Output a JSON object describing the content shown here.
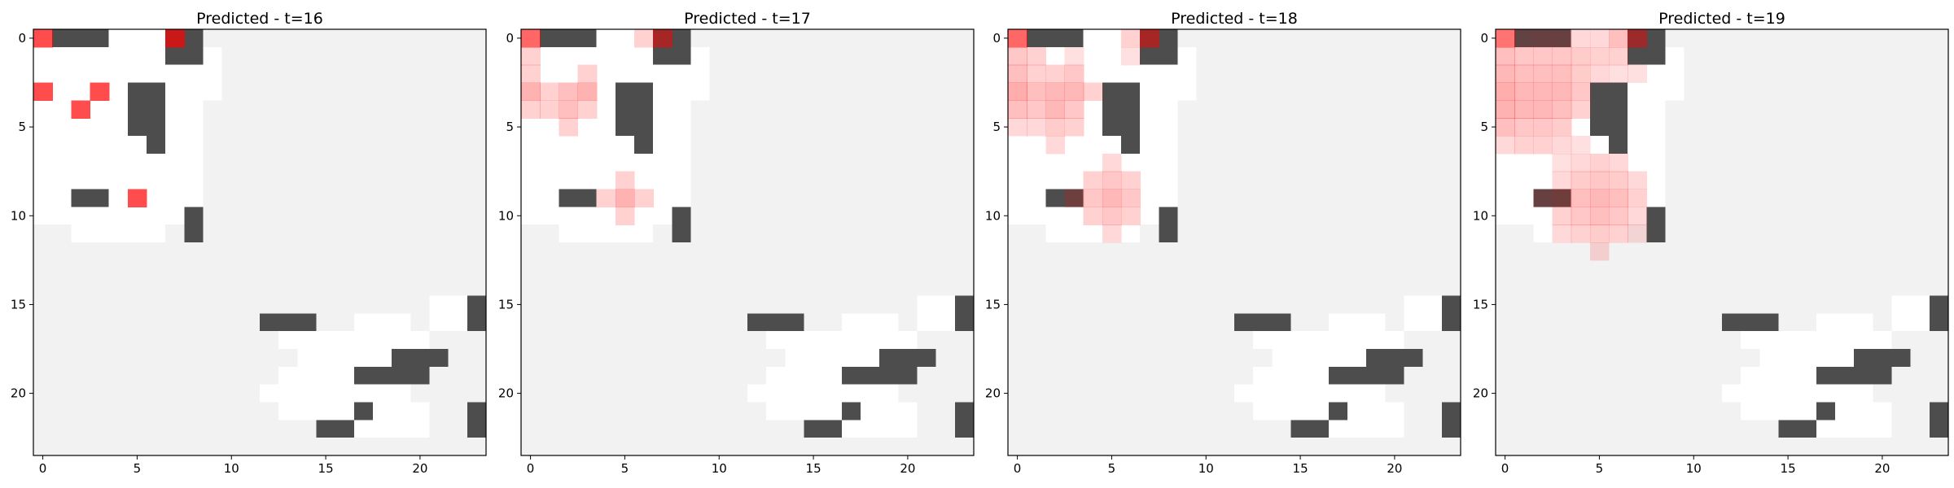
{
  "colors": {
    "unknown": "#f2f2f2",
    "free": "#ffffff",
    "obstacle": "#4d4d4d",
    "prediction": "#ff0000",
    "frame": "#000000"
  },
  "chart_data": {
    "type": "heatmap",
    "grid_size": [
      24,
      24
    ],
    "cell_legend": {
      "0": "unknown",
      "1": "free",
      "2": "obstacle"
    },
    "xticks": [
      0,
      5,
      10,
      15,
      20
    ],
    "yticks": [
      0,
      5,
      10,
      15,
      20
    ],
    "xlim": [
      -0.5,
      23.5
    ],
    "ylim": [
      23.5,
      -0.5
    ],
    "base_grid": [
      "122211122000000000000000",
      "111111122100000000000000",
      "111111111100000000000000",
      "111112211100000000000000",
      "111112211000000000000000",
      "111112211000000000000000",
      "111111211000000000000000",
      "111111111000000000000000",
      "111111111000000000000000",
      "112211111000000000000000",
      "111111112000000000000000",
      "001111102000000000000000",
      "000000000000000000000000",
      "000000000000000000000000",
      "000000000000000000000000",
      "000000000000000000000112",
      "000000000000222001110112",
      "000000000000011111111000",
      "000000000000001111122200",
      "000000000000011112222000",
      "000000000000111111110000",
      "000000000000011112111002",
      "000000000000000221111002",
      "000000000000000000000000"
    ],
    "panels": [
      {
        "title": "Predicted - t=16",
        "predictions": [
          [
            0,
            0,
            0.7
          ],
          [
            0,
            7,
            0.7
          ],
          [
            3,
            0,
            0.7
          ],
          [
            3,
            3,
            0.7
          ],
          [
            4,
            2,
            0.7
          ],
          [
            9,
            5,
            0.7
          ]
        ]
      },
      {
        "title": "Predicted - t=17",
        "predictions": [
          [
            0,
            0,
            0.6
          ],
          [
            0,
            6,
            0.18
          ],
          [
            0,
            7,
            0.5
          ],
          [
            1,
            0,
            0.18
          ],
          [
            2,
            0,
            0.18
          ],
          [
            2,
            3,
            0.18
          ],
          [
            3,
            0,
            0.3
          ],
          [
            3,
            1,
            0.18
          ],
          [
            3,
            2,
            0.25
          ],
          [
            3,
            3,
            0.3
          ],
          [
            4,
            0,
            0.18
          ],
          [
            4,
            1,
            0.18
          ],
          [
            4,
            2,
            0.25
          ],
          [
            4,
            3,
            0.18
          ],
          [
            5,
            2,
            0.18
          ],
          [
            8,
            5,
            0.18
          ],
          [
            9,
            4,
            0.18
          ],
          [
            9,
            5,
            0.3
          ],
          [
            9,
            6,
            0.18
          ],
          [
            10,
            5,
            0.18
          ]
        ]
      },
      {
        "title": "Predicted - t=18",
        "predictions": [
          [
            0,
            0,
            0.6
          ],
          [
            0,
            6,
            0.18
          ],
          [
            0,
            7,
            0.5
          ],
          [
            1,
            0,
            0.22
          ],
          [
            1,
            1,
            0.18
          ],
          [
            1,
            3,
            0.12
          ],
          [
            1,
            6,
            0.12
          ],
          [
            2,
            0,
            0.25
          ],
          [
            2,
            1,
            0.18
          ],
          [
            2,
            2,
            0.18
          ],
          [
            2,
            3,
            0.22
          ],
          [
            3,
            0,
            0.32
          ],
          [
            3,
            1,
            0.25
          ],
          [
            3,
            2,
            0.28
          ],
          [
            3,
            3,
            0.28
          ],
          [
            3,
            4,
            0.18
          ],
          [
            4,
            0,
            0.25
          ],
          [
            4,
            1,
            0.22
          ],
          [
            4,
            2,
            0.28
          ],
          [
            4,
            3,
            0.22
          ],
          [
            5,
            0,
            0.15
          ],
          [
            5,
            1,
            0.15
          ],
          [
            5,
            2,
            0.2
          ],
          [
            5,
            3,
            0.18
          ],
          [
            6,
            2,
            0.15
          ],
          [
            7,
            5,
            0.15
          ],
          [
            8,
            4,
            0.18
          ],
          [
            8,
            5,
            0.22
          ],
          [
            8,
            6,
            0.18
          ],
          [
            9,
            3,
            0.18
          ],
          [
            9,
            4,
            0.22
          ],
          [
            9,
            5,
            0.28
          ],
          [
            9,
            6,
            0.22
          ],
          [
            10,
            4,
            0.18
          ],
          [
            10,
            5,
            0.22
          ],
          [
            10,
            6,
            0.18
          ],
          [
            11,
            5,
            0.15
          ]
        ]
      },
      {
        "title": "Predicted - t=19",
        "predictions": [
          [
            0,
            0,
            0.55
          ],
          [
            0,
            1,
            0.12
          ],
          [
            0,
            2,
            0.15
          ],
          [
            0,
            3,
            0.15
          ],
          [
            0,
            4,
            0.15
          ],
          [
            0,
            5,
            0.15
          ],
          [
            0,
            6,
            0.25
          ],
          [
            0,
            7,
            0.45
          ],
          [
            1,
            0,
            0.25
          ],
          [
            1,
            1,
            0.22
          ],
          [
            1,
            2,
            0.22
          ],
          [
            1,
            3,
            0.22
          ],
          [
            1,
            4,
            0.2
          ],
          [
            1,
            5,
            0.18
          ],
          [
            1,
            6,
            0.18
          ],
          [
            2,
            0,
            0.28
          ],
          [
            2,
            1,
            0.25
          ],
          [
            2,
            2,
            0.25
          ],
          [
            2,
            3,
            0.25
          ],
          [
            2,
            4,
            0.2
          ],
          [
            2,
            5,
            0.15
          ],
          [
            2,
            6,
            0.12
          ],
          [
            2,
            7,
            0.12
          ],
          [
            3,
            0,
            0.32
          ],
          [
            3,
            1,
            0.28
          ],
          [
            3,
            2,
            0.28
          ],
          [
            3,
            3,
            0.28
          ],
          [
            3,
            4,
            0.22
          ],
          [
            4,
            0,
            0.3
          ],
          [
            4,
            1,
            0.28
          ],
          [
            4,
            2,
            0.28
          ],
          [
            4,
            3,
            0.25
          ],
          [
            4,
            4,
            0.18
          ],
          [
            5,
            0,
            0.25
          ],
          [
            5,
            1,
            0.22
          ],
          [
            5,
            2,
            0.22
          ],
          [
            5,
            3,
            0.2
          ],
          [
            6,
            0,
            0.15
          ],
          [
            6,
            1,
            0.18
          ],
          [
            6,
            2,
            0.18
          ],
          [
            6,
            3,
            0.15
          ],
          [
            6,
            4,
            0.12
          ],
          [
            7,
            3,
            0.12
          ],
          [
            7,
            4,
            0.15
          ],
          [
            7,
            5,
            0.18
          ],
          [
            7,
            6,
            0.15
          ],
          [
            8,
            3,
            0.15
          ],
          [
            8,
            4,
            0.2
          ],
          [
            8,
            5,
            0.22
          ],
          [
            8,
            6,
            0.2
          ],
          [
            8,
            7,
            0.15
          ],
          [
            9,
            2,
            0.15
          ],
          [
            9,
            3,
            0.2
          ],
          [
            9,
            4,
            0.25
          ],
          [
            9,
            5,
            0.28
          ],
          [
            9,
            6,
            0.25
          ],
          [
            9,
            7,
            0.18
          ],
          [
            10,
            3,
            0.18
          ],
          [
            10,
            4,
            0.22
          ],
          [
            10,
            5,
            0.25
          ],
          [
            10,
            6,
            0.22
          ],
          [
            10,
            7,
            0.15
          ],
          [
            11,
            3,
            0.15
          ],
          [
            11,
            4,
            0.18
          ],
          [
            11,
            5,
            0.2
          ],
          [
            11,
            6,
            0.18
          ],
          [
            11,
            7,
            0.12
          ],
          [
            12,
            5,
            0.15
          ]
        ]
      }
    ]
  }
}
